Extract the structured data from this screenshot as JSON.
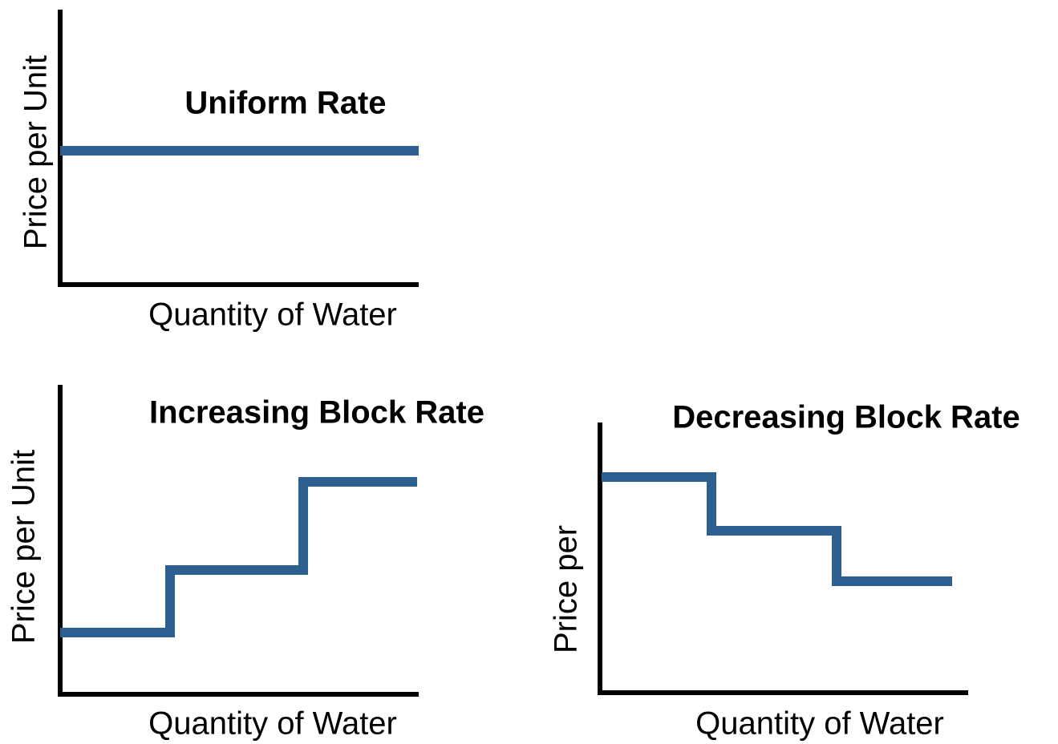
{
  "panels": [
    {
      "title": "Uniform Rate",
      "y_label": "Price per Unit",
      "x_label": "Quantity of Water"
    },
    {
      "title": "Increasing Block Rate",
      "y_label": "Price per Unit",
      "x_label": "Quantity of Water"
    },
    {
      "title": "Decreasing Block Rate",
      "y_label": "Price per",
      "x_label": "Quantity of Water"
    }
  ]
}
